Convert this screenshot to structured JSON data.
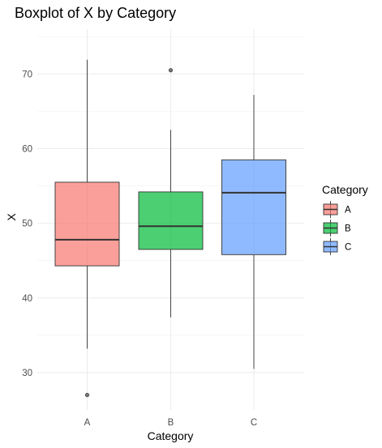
{
  "chart_data": {
    "type": "boxplot",
    "title": "Boxplot of X by Category",
    "xlabel": "Category",
    "ylabel": "X",
    "ylim": [
      25,
      76
    ],
    "yticks": [
      30,
      40,
      50,
      60,
      70
    ],
    "grid": true,
    "legend": {
      "title": "Category",
      "placement": "right"
    },
    "categories": [
      "A",
      "B",
      "C"
    ],
    "colors": [
      "#F8766D",
      "#00BA38",
      "#619CFF"
    ],
    "box_alpha": 0.7,
    "series": [
      {
        "category": "A",
        "whisker_low": 33.2,
        "q1": 44.3,
        "median": 47.8,
        "q3": 55.5,
        "whisker_high": 71.9,
        "outliers": [
          27.0
        ]
      },
      {
        "category": "B",
        "whisker_low": 37.4,
        "q1": 46.5,
        "median": 49.6,
        "q3": 54.2,
        "whisker_high": 62.5,
        "outliers": [
          70.5
        ]
      },
      {
        "category": "C",
        "whisker_low": 30.5,
        "q1": 45.8,
        "median": 54.1,
        "q3": 58.5,
        "whisker_high": 67.2,
        "outliers": []
      }
    ]
  }
}
